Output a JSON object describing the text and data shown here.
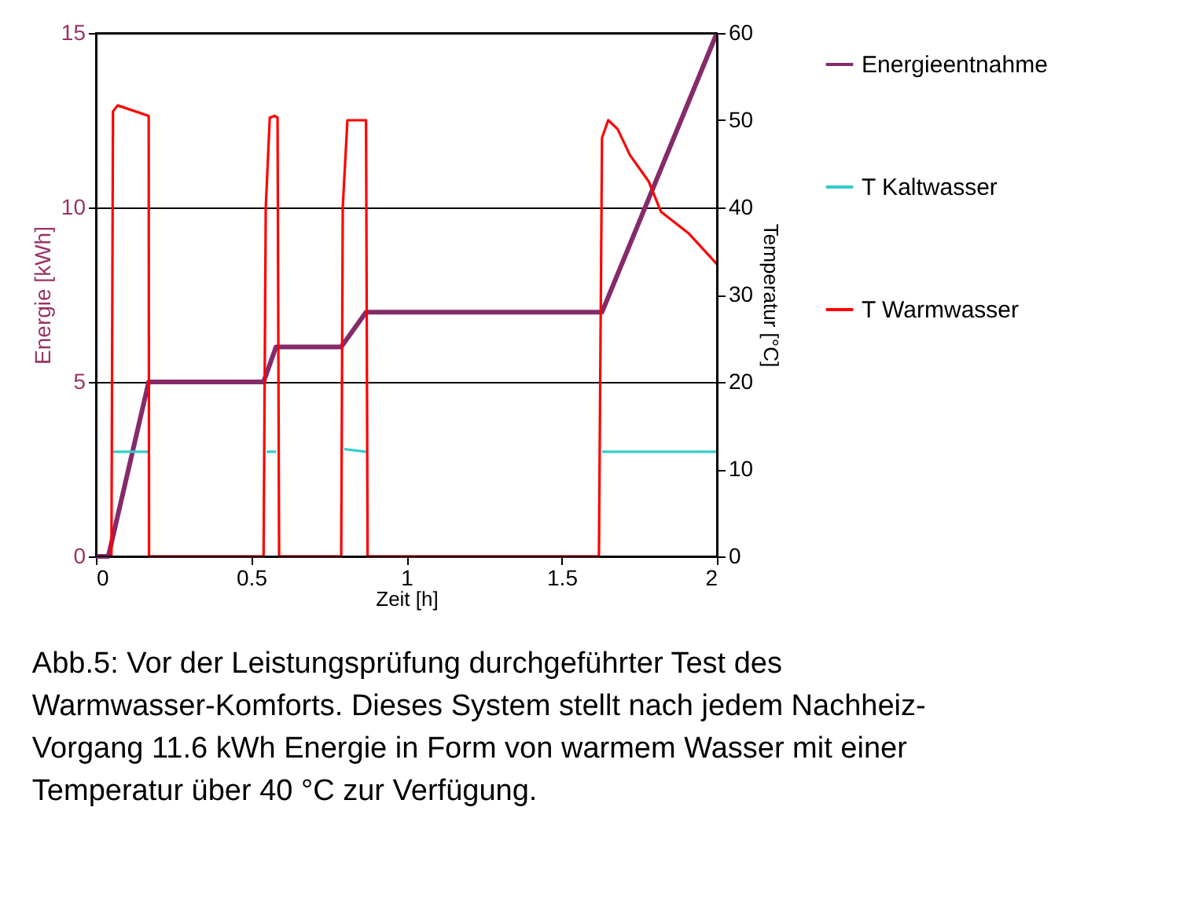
{
  "chart_data": {
    "type": "line",
    "xlabel": "Zeit [h]",
    "ylabel": "Energie [kWh]",
    "y2label": "Temperatur [°C]",
    "xlim": [
      0,
      2
    ],
    "xticks": [
      0,
      0.5,
      1,
      1.5,
      2
    ],
    "ylim": [
      0,
      15
    ],
    "yticks": [
      0,
      5,
      10,
      15
    ],
    "y2lim": [
      0,
      60
    ],
    "y2ticks": [
      0,
      10,
      20,
      30,
      40,
      50,
      60
    ],
    "grid": "y",
    "legend": "right",
    "marker": "none",
    "line_style": "solid",
    "series": [
      {
        "name": "Energieentnahme",
        "color": "#862a6a",
        "x": [
          0,
          0.04,
          0.17,
          0.54,
          0.58,
          0.79,
          0.87,
          1.63,
          2.0
        ],
        "values": [
          0,
          0,
          5,
          5,
          6,
          6,
          7,
          7,
          15
        ]
      },
      {
        "name": "T Kaltwasser",
        "color": "#33cccc",
        "axis": "y2",
        "x": [
          0.05,
          0.17,
          0.35,
          0.55,
          0.58,
          0.7,
          0.8,
          0.87,
          1.2,
          1.63,
          2.0
        ],
        "values": [
          12,
          12,
          null,
          12,
          12,
          null,
          12.3,
          12,
          null,
          12,
          12
        ]
      },
      {
        "name": "T Warmwasser",
        "color": "#ff0000",
        "axis": "y2",
        "x": [
          0.05,
          0.055,
          0.07,
          0.17,
          0.171,
          0.54,
          0.547,
          0.56,
          0.575,
          0.585,
          0.59,
          0.79,
          0.795,
          0.81,
          0.86,
          0.87,
          0.875,
          1.62,
          1.63,
          1.65,
          1.68,
          1.72,
          1.78,
          1.82,
          1.91,
          2.0
        ],
        "values": [
          0,
          51,
          51.7,
          50.5,
          0,
          0,
          40,
          50.3,
          50.5,
          50.3,
          0,
          0,
          40,
          50,
          50,
          50,
          0,
          0,
          48,
          50,
          49,
          46,
          43,
          39.5,
          37,
          33.5
        ]
      }
    ],
    "annotations": [
      "Abb.5: Vor der Leistungsprüfung durchgeführter Test des Warmwasser-Komforts. Dieses System stellt nach jedem Nachheiz-Vorgang 11.6 kWh Energie in Form von warmem Wasser mit einer Temperatur über 40 °C zur Verfügung."
    ]
  }
}
